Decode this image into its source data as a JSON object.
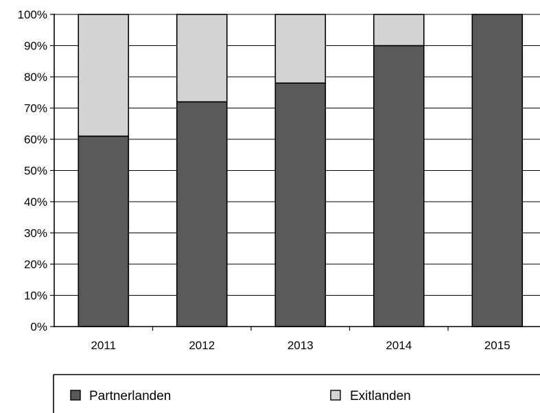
{
  "chart_data": {
    "type": "bar",
    "stacked": true,
    "percent": true,
    "categories": [
      "2011",
      "2012",
      "2013",
      "2014",
      "2015"
    ],
    "series": [
      {
        "name": "Partnerlanden",
        "values": [
          61,
          72,
          78,
          90,
          100
        ],
        "color": "#595959"
      },
      {
        "name": "Exitlanden",
        "values": [
          39,
          28,
          22,
          10,
          0
        ],
        "color": "#d3d3d3"
      }
    ],
    "ylim": [
      0,
      100
    ],
    "yticks": [
      "0%",
      "10%",
      "20%",
      "30%",
      "40%",
      "50%",
      "60%",
      "70%",
      "80%",
      "90%",
      "100%"
    ],
    "grid": true,
    "legend": "bottom",
    "title": "",
    "xlabel": "",
    "ylabel": ""
  }
}
